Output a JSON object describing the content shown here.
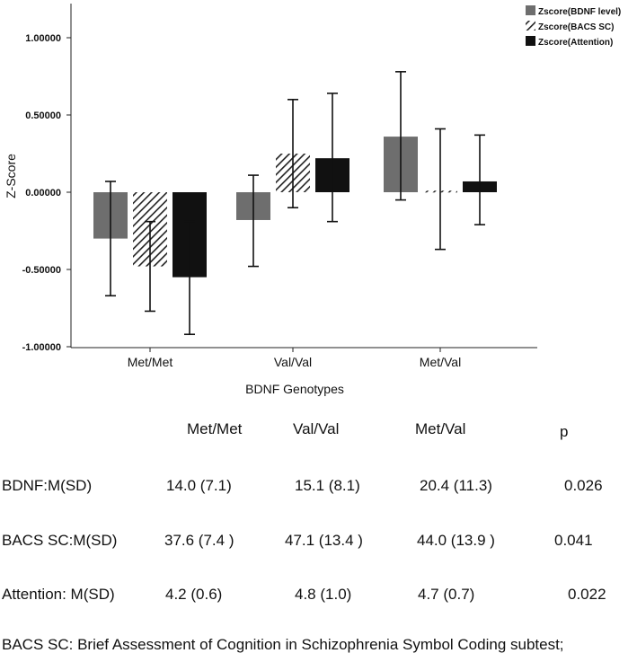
{
  "chart_data": {
    "type": "bar",
    "xlabel": "BDNF Genotypes",
    "ylabel": "Z-Score",
    "ylim": [
      -1.0,
      1.0
    ],
    "yticks": [
      "1.00000",
      "0.50000",
      "0.00000",
      "-0.50000",
      "-1.00000"
    ],
    "categories": [
      "Met/Met",
      "Val/Val",
      "Met/Val"
    ],
    "series": [
      {
        "name": "Zscore(BDNF level)",
        "color": "#6e6e6e",
        "pattern": "solid",
        "values": [
          -0.3,
          -0.18,
          0.36
        ],
        "error_low": [
          -0.67,
          -0.48,
          -0.05
        ],
        "error_high": [
          0.07,
          0.11,
          0.78
        ]
      },
      {
        "name": "Zscore(BACS SC)",
        "color": "#222222",
        "pattern": "hatch",
        "values": [
          -0.48,
          0.25,
          0.01
        ],
        "error_low": [
          -0.77,
          -0.1,
          -0.37
        ],
        "error_high": [
          -0.19,
          0.6,
          0.41
        ]
      },
      {
        "name": "Zscore(Attention)",
        "color": "#111111",
        "pattern": "solid",
        "values": [
          -0.55,
          0.22,
          0.07
        ],
        "error_low": [
          -0.92,
          -0.19,
          -0.21
        ],
        "error_high": [
          -0.19,
          0.64,
          0.37
        ]
      }
    ],
    "legend_position": "top-right",
    "grid": false
  },
  "table": {
    "headers": [
      "Met/Met",
      "Val/Val",
      "Met/Val",
      "p"
    ],
    "rows": [
      {
        "label": "BDNF:M(SD)",
        "cells": [
          "14.0 (7.1)",
          "15.1 (8.1)",
          "20.4 (11.3)",
          "0.026"
        ]
      },
      {
        "label": "BACS SC:M(SD)",
        "cells": [
          "37.6 (7.4 )",
          "47.1 (13.4 )",
          "44.0 (13.9 )",
          "0.041"
        ]
      },
      {
        "label": "Attention: M(SD)",
        "cells": [
          "4.2 (0.6)",
          "4.8 (1.0)",
          "4.7 (0.7)",
          "0.022"
        ]
      }
    ]
  },
  "footnote": "BACS SC: Brief Assessment of Cognition in Schizophrenia Symbol Coding subtest;"
}
